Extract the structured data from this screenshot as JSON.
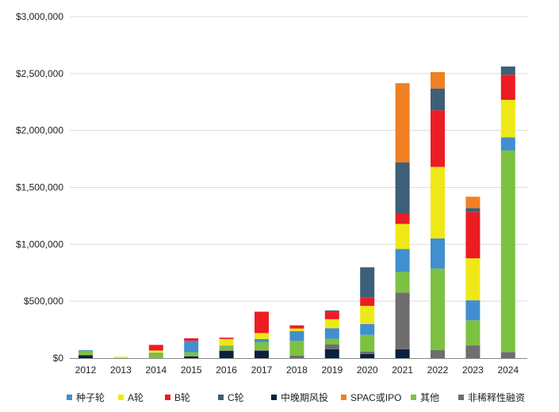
{
  "chart_data": {
    "type": "bar",
    "stacked": true,
    "title": "",
    "xlabel": "",
    "ylabel": "",
    "ylim": [
      0,
      3000000
    ],
    "yticks": [
      0,
      500000,
      1000000,
      1500000,
      2000000,
      2500000,
      3000000
    ],
    "ytick_labels": [
      "$0",
      "$500,000",
      "$1,000,000",
      "$1,500,000",
      "$2,000,000",
      "$2,500,000",
      "$3,000,000"
    ],
    "grid": true,
    "legend_position": "bottom",
    "categories": [
      "2012",
      "2013",
      "2014",
      "2015",
      "2016",
      "2017",
      "2018",
      "2019",
      "2020",
      "2021",
      "2022",
      "2023",
      "2024"
    ],
    "series": [
      {
        "name": "中晚期风投",
        "color": "#0B1F40",
        "values": [
          26000,
          0,
          0,
          16000,
          63000,
          63000,
          0,
          77000,
          37000,
          77000,
          0,
          0,
          0
        ]
      },
      {
        "name": "非稀释性融资",
        "color": "#6E6E6F",
        "values": [
          0,
          0,
          0,
          0,
          5000,
          7000,
          23000,
          44000,
          21000,
          499000,
          72000,
          111000,
          54000
        ]
      },
      {
        "name": "其他",
        "color": "#7DC142",
        "values": [
          40000,
          0,
          37000,
          35000,
          35000,
          70000,
          130000,
          49000,
          146000,
          181000,
          715000,
          221000,
          1770000
        ]
      },
      {
        "name": "种子轮",
        "color": "#418FCE",
        "values": [
          4000,
          0,
          9000,
          100000,
          5000,
          28000,
          84000,
          93000,
          95000,
          202000,
          264000,
          176000,
          116000
        ]
      },
      {
        "name": "A轮",
        "color": "#EFE817",
        "values": [
          0,
          12000,
          21000,
          0,
          60000,
          52000,
          23000,
          79000,
          160000,
          220000,
          629000,
          369000,
          329000
        ]
      },
      {
        "name": "B轮",
        "color": "#EC1C24",
        "values": [
          0,
          0,
          49000,
          23000,
          12000,
          188000,
          28000,
          68000,
          72000,
          95000,
          497000,
          406000,
          221000
        ]
      },
      {
        "name": "C轮",
        "color": "#3D5F78",
        "values": [
          0,
          0,
          0,
          0,
          0,
          0,
          0,
          9000,
          267000,
          445000,
          192000,
          35000,
          72000
        ]
      },
      {
        "name": "SPAC或IPO",
        "color": "#F08023",
        "values": [
          0,
          0,
          0,
          0,
          0,
          0,
          0,
          0,
          0,
          696000,
          144000,
          100000,
          0
        ]
      }
    ],
    "legend_order": [
      "种子轮",
      "A轮",
      "B轮",
      "C轮",
      "中晚期风投",
      "SPAC或IPO",
      "其他",
      "非稀释性融资"
    ]
  }
}
